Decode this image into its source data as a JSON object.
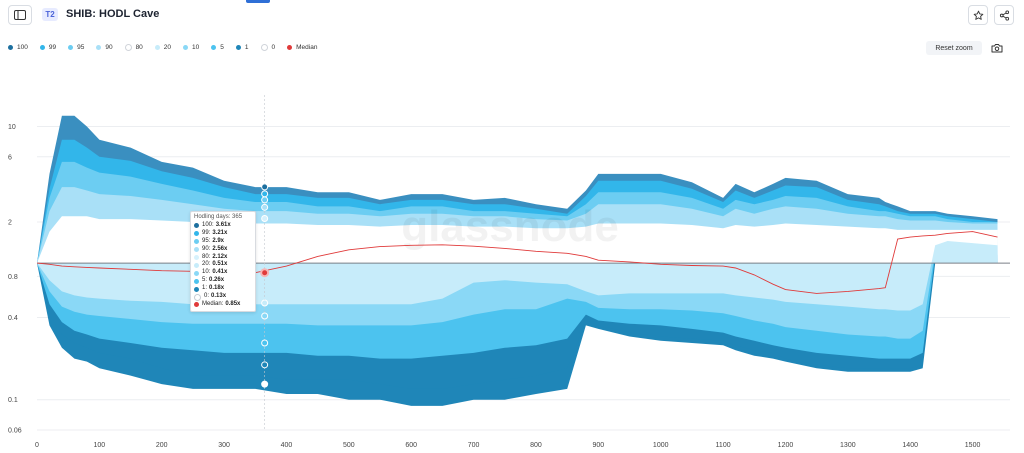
{
  "header": {
    "badge": "T2",
    "title": "SHIB: HODL Cave",
    "reset_zoom_label": "Reset zoom"
  },
  "icons": {
    "sidebar": "sidebar-toggle-icon",
    "star": "star-icon",
    "share": "share-icon",
    "camera": "camera-icon"
  },
  "chart_data": {
    "type": "area",
    "title": "SHIB: HODL Cave",
    "xlabel": "",
    "ylabel": "",
    "x_ticks": [
      "0",
      "100",
      "200",
      "300",
      "400",
      "500",
      "600",
      "700",
      "800",
      "900",
      "1000",
      "1100",
      "1200",
      "1300",
      "1400",
      "1500"
    ],
    "y_scale": "log",
    "y_ticks": [
      {
        "value": 10,
        "label": "10"
      },
      {
        "value": 6,
        "label": "6"
      },
      {
        "value": 2,
        "label": "2"
      },
      {
        "value": 0.8,
        "label": "0.8"
      },
      {
        "value": 0.4,
        "label": "0.4"
      },
      {
        "value": 0.1,
        "label": "0.1"
      },
      {
        "value": 0.06,
        "label": "0.06"
      }
    ],
    "xlim": [
      0,
      1560
    ],
    "ylim": [
      0.06,
      17
    ],
    "reference_line": 1,
    "watermark": "glassnode",
    "x": [
      0,
      20,
      40,
      60,
      80,
      100,
      150,
      200,
      250,
      300,
      350,
      400,
      450,
      500,
      550,
      600,
      650,
      700,
      750,
      800,
      850,
      880,
      900,
      950,
      1000,
      1050,
      1100,
      1120,
      1150,
      1180,
      1200,
      1250,
      1300,
      1350,
      1360,
      1380,
      1400,
      1420,
      1440,
      1460,
      1500,
      1540
    ],
    "series": [
      {
        "name": "100",
        "color": "#3a8fc0",
        "values": [
          1,
          4.5,
          12,
          12,
          10,
          8,
          7,
          5.5,
          5,
          4,
          3.6,
          3.6,
          3.3,
          3.3,
          2.9,
          3.2,
          3.2,
          2.9,
          3,
          2.7,
          2.5,
          3.4,
          4.5,
          4.5,
          4.5,
          3.9,
          3,
          3.8,
          3.3,
          3.8,
          4.2,
          4,
          3.2,
          3,
          2.8,
          2.6,
          2.4,
          2.4,
          2.4,
          2.3,
          2.2,
          2.1
        ]
      },
      {
        "name": "99",
        "color": "#32b6ea",
        "values": [
          1,
          3.5,
          8,
          8,
          7,
          6,
          5.6,
          4.7,
          4.2,
          3.6,
          3.2,
          3.2,
          3,
          3,
          2.7,
          2.9,
          2.9,
          2.7,
          2.7,
          2.5,
          2.3,
          3.1,
          4,
          4,
          4,
          3.5,
          2.8,
          3.4,
          3,
          3.4,
          3.7,
          3.6,
          2.9,
          2.7,
          2.6,
          2.4,
          2.3,
          2.3,
          2.3,
          2.2,
          2.1,
          2
        ]
      },
      {
        "name": "95",
        "color": "#6ccdf2",
        "values": [
          1,
          3,
          5.5,
          5.5,
          5,
          4.6,
          4.3,
          3.8,
          3.4,
          3,
          2.8,
          2.8,
          2.6,
          2.6,
          2.4,
          2.6,
          2.6,
          2.4,
          2.4,
          2.3,
          2.2,
          2.7,
          3.3,
          3.3,
          3.3,
          3,
          2.5,
          2.9,
          2.7,
          2.9,
          3.1,
          3,
          2.6,
          2.4,
          2.4,
          2.3,
          2.2,
          2.2,
          2.2,
          2.1,
          2,
          2
        ]
      },
      {
        "name": "90",
        "color": "#a9e0f7",
        "values": [
          1,
          2.4,
          3.6,
          3.6,
          3.4,
          3.2,
          3.1,
          2.9,
          2.7,
          2.5,
          2.4,
          2.4,
          2.3,
          2.3,
          2.2,
          2.3,
          2.3,
          2.2,
          2.2,
          2.1,
          2.05,
          2.3,
          2.7,
          2.7,
          2.7,
          2.5,
          2.2,
          2.5,
          2.3,
          2.5,
          2.6,
          2.5,
          2.3,
          2.2,
          2.2,
          2.1,
          2.05,
          2.05,
          2.05,
          2,
          1.95,
          1.95
        ]
      },
      {
        "name": "80",
        "color": "#ffffff",
        "values": [
          1,
          1.7,
          2.2,
          2.2,
          2.2,
          2.1,
          2.1,
          2.05,
          2,
          1.95,
          1.95,
          1.95,
          1.9,
          1.9,
          1.85,
          1.9,
          1.9,
          1.85,
          1.85,
          1.8,
          1.8,
          1.85,
          1.95,
          1.95,
          1.95,
          1.9,
          1.8,
          1.9,
          1.85,
          1.9,
          1.95,
          1.9,
          1.85,
          1.8,
          1.8,
          1.75,
          1.75,
          1.75,
          1.75,
          1.75,
          1.75,
          1.75
        ]
      },
      {
        "name": "20",
        "color": "#c7ecfa",
        "values": [
          1,
          0.75,
          0.62,
          0.58,
          0.56,
          0.55,
          0.53,
          0.52,
          0.5,
          0.5,
          0.5,
          0.5,
          0.5,
          0.5,
          0.5,
          0.5,
          0.55,
          0.72,
          0.75,
          0.72,
          0.7,
          0.62,
          0.58,
          0.6,
          0.6,
          0.6,
          0.6,
          0.58,
          0.56,
          0.54,
          0.52,
          0.5,
          0.48,
          0.46,
          0.46,
          0.45,
          0.45,
          0.5,
          1.35,
          1.45,
          1.4,
          1.35
        ]
      },
      {
        "name": "10",
        "color": "#8ad8f6",
        "values": [
          1,
          0.62,
          0.48,
          0.44,
          0.42,
          0.41,
          0.39,
          0.37,
          0.36,
          0.36,
          0.36,
          0.36,
          0.35,
          0.35,
          0.35,
          0.35,
          0.37,
          0.42,
          0.46,
          0.46,
          0.55,
          0.52,
          0.47,
          0.46,
          0.46,
          0.45,
          0.43,
          0.41,
          0.38,
          0.36,
          0.34,
          0.32,
          0.3,
          0.29,
          0.29,
          0.28,
          0.28,
          0.32,
          1.25,
          1.35,
          1.35,
          1.3
        ]
      },
      {
        "name": "5",
        "color": "#4cc3ef",
        "values": [
          1,
          0.5,
          0.37,
          0.32,
          0.3,
          0.28,
          0.26,
          0.24,
          0.23,
          0.22,
          0.22,
          0.22,
          0.21,
          0.21,
          0.2,
          0.2,
          0.21,
          0.22,
          0.24,
          0.25,
          0.28,
          0.42,
          0.38,
          0.36,
          0.35,
          0.33,
          0.31,
          0.29,
          0.27,
          0.25,
          0.24,
          0.22,
          0.21,
          0.2,
          0.2,
          0.2,
          0.2,
          0.22,
          1.15,
          1.3,
          1.3,
          1.25
        ]
      },
      {
        "name": "1",
        "color": "#1f86b8",
        "values": [
          1,
          0.42,
          0.3,
          0.26,
          0.24,
          0.22,
          0.2,
          0.17,
          0.15,
          0.15,
          0.15,
          0.14,
          0.14,
          0.14,
          0.13,
          0.12,
          0.12,
          0.13,
          0.14,
          0.15,
          0.17,
          0.38,
          0.35,
          0.31,
          0.29,
          0.28,
          0.27,
          0.25,
          0.23,
          0.22,
          0.2,
          0.18,
          0.17,
          0.17,
          0.17,
          0.17,
          0.17,
          0.18,
          1.05,
          1.25,
          1.25,
          1.2
        ]
      },
      {
        "name": "0",
        "color": "#1f86b8",
        "values": [
          1,
          0.35,
          0.24,
          0.2,
          0.19,
          0.17,
          0.15,
          0.13,
          0.12,
          0.12,
          0.12,
          0.11,
          0.11,
          0.1,
          0.1,
          0.09,
          0.09,
          0.1,
          0.1,
          0.11,
          0.12,
          0.35,
          0.33,
          0.29,
          0.27,
          0.26,
          0.25,
          0.23,
          0.21,
          0.2,
          0.19,
          0.17,
          0.16,
          0.16,
          0.16,
          0.16,
          0.16,
          0.17,
          1,
          1.2,
          1.2,
          1.15
        ]
      }
    ],
    "median": {
      "name": "Median",
      "color": "#e03a3a",
      "values": [
        1,
        0.98,
        0.95,
        0.94,
        0.93,
        0.92,
        0.9,
        0.88,
        0.87,
        0.86,
        0.85,
        0.95,
        1.12,
        1.25,
        1.32,
        1.35,
        1.36,
        1.33,
        1.28,
        1.22,
        1.18,
        1.12,
        1.05,
        1.02,
        0.98,
        0.96,
        0.95,
        0.92,
        0.82,
        0.7,
        0.64,
        0.6,
        0.62,
        0.65,
        0.66,
        1.5,
        1.55,
        1.58,
        1.6,
        1.65,
        1.7,
        1.55
      ]
    },
    "tooltip": {
      "header": "Hodling days: 365",
      "x": 365,
      "rows": [
        {
          "label": "100:",
          "value": "3.61x",
          "color": "#1d6f9f"
        },
        {
          "label": "99:",
          "value": "3.21x",
          "color": "#32b6ea"
        },
        {
          "label": "95:",
          "value": "2.9x",
          "color": "#6ccdf2"
        },
        {
          "label": "90:",
          "value": "2.56x",
          "color": "#a9e0f7"
        },
        {
          "label": "80:",
          "value": "2.12x",
          "color": "#d6f1fc"
        },
        {
          "label": "20:",
          "value": "0.51x",
          "color": "#c7ecfa"
        },
        {
          "label": "10:",
          "value": "0.41x",
          "color": "#8ad8f6"
        },
        {
          "label": "5:",
          "value": "0.26x",
          "color": "#4cc3ef"
        },
        {
          "label": "1:",
          "value": "0.18x",
          "color": "#1f86b8"
        },
        {
          "label": "0:",
          "value": "0.13x",
          "color": "#ffffff"
        },
        {
          "label": "Median:",
          "value": "0.85x",
          "color": "#e03a3a"
        }
      ]
    },
    "legend": [
      {
        "name": "100",
        "color": "#1d6f9f"
      },
      {
        "name": "99",
        "color": "#32b6ea"
      },
      {
        "name": "95",
        "color": "#6ccdf2"
      },
      {
        "name": "90",
        "color": "#a9e0f7"
      },
      {
        "name": "80",
        "color": "#ffffff"
      },
      {
        "name": "20",
        "color": "#c7ecfa"
      },
      {
        "name": "10",
        "color": "#8ad8f6"
      },
      {
        "name": "5",
        "color": "#4cc3ef"
      },
      {
        "name": "1",
        "color": "#1f86b8"
      },
      {
        "name": "0",
        "color": "#ffffff"
      },
      {
        "name": "Median",
        "color": "#e03a3a"
      }
    ]
  }
}
